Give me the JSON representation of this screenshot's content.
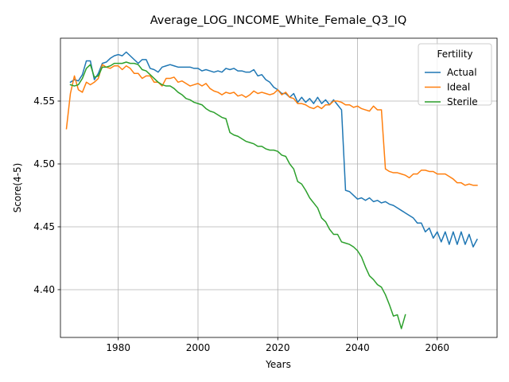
{
  "chart_data": {
    "type": "line",
    "title": "Average_LOG_INCOME_White_Female_Q3_IQ",
    "xlabel": "Years",
    "ylabel": "Score(4-5)",
    "xlim": [
      1965.5,
      2075
    ],
    "ylim": [
      4.362,
      4.6
    ],
    "xticks": [
      1980,
      2000,
      2020,
      2040,
      2060
    ],
    "yticks": [
      4.4,
      4.45,
      4.5,
      4.55
    ],
    "xtick_labels": [
      "1980",
      "2000",
      "2020",
      "2040",
      "2060"
    ],
    "ytick_labels": [
      "4.40",
      "4.45",
      "4.50",
      "4.55"
    ],
    "grid": true,
    "legend": {
      "title": "Fertility",
      "placement": "top-right"
    },
    "series": [
      {
        "name": "Actual",
        "color": "#1f77b4",
        "x": [
          1968,
          1969,
          1970,
          1971,
          1972,
          1973,
          1974,
          1975,
          1976,
          1977,
          1978,
          1979,
          1980,
          1981,
          1982,
          1983,
          1984,
          1985,
          1986,
          1987,
          1988,
          1989,
          1990,
          1991,
          1992,
          1993,
          1994,
          1995,
          1996,
          1997,
          1998,
          1999,
          2000,
          2001,
          2002,
          2003,
          2004,
          2005,
          2006,
          2007,
          2008,
          2009,
          2010,
          2011,
          2012,
          2013,
          2014,
          2015,
          2016,
          2017,
          2018,
          2019,
          2020,
          2021,
          2022,
          2023,
          2024,
          2025,
          2026,
          2027,
          2028,
          2029,
          2030,
          2031,
          2032,
          2033,
          2034,
          2035,
          2036,
          2037,
          2038,
          2039,
          2040,
          2041,
          2042,
          2043,
          2044,
          2045,
          2046,
          2047,
          2048,
          2049,
          2050,
          2051,
          2052,
          2053,
          2054,
          2055,
          2056,
          2057,
          2058,
          2059,
          2060,
          2061,
          2062,
          2063,
          2064,
          2065,
          2066,
          2067,
          2068,
          2069,
          2070
        ],
        "y": [
          4.565,
          4.567,
          4.566,
          4.571,
          4.582,
          4.582,
          4.567,
          4.572,
          4.58,
          4.581,
          4.584,
          4.586,
          4.587,
          4.586,
          4.589,
          4.586,
          4.583,
          4.58,
          4.583,
          4.583,
          4.576,
          4.575,
          4.573,
          4.577,
          4.578,
          4.579,
          4.578,
          4.577,
          4.577,
          4.577,
          4.577,
          4.576,
          4.576,
          4.574,
          4.575,
          4.574,
          4.573,
          4.574,
          4.573,
          4.576,
          4.575,
          4.576,
          4.574,
          4.574,
          4.573,
          4.573,
          4.575,
          4.57,
          4.571,
          4.567,
          4.565,
          4.561,
          4.559,
          4.556,
          4.556,
          4.553,
          4.556,
          4.549,
          4.553,
          4.549,
          4.552,
          4.548,
          4.553,
          4.548,
          4.551,
          4.547,
          4.551,
          4.547,
          4.543,
          4.479,
          4.478,
          4.475,
          4.472,
          4.473,
          4.471,
          4.473,
          4.47,
          4.471,
          4.469,
          4.47,
          4.468,
          4.467,
          4.465,
          4.463,
          4.461,
          4.459,
          4.457,
          4.453,
          4.453,
          4.446,
          4.449,
          4.441,
          4.446,
          4.438,
          4.446,
          4.436,
          4.446,
          4.436,
          4.446,
          4.436,
          4.444,
          4.434,
          4.44
        ]
      },
      {
        "name": "Ideal",
        "color": "#ff7f0e",
        "x": [
          1967,
          1968,
          1969,
          1970,
          1971,
          1972,
          1973,
          1974,
          1975,
          1976,
          1977,
          1978,
          1979,
          1980,
          1981,
          1982,
          1983,
          1984,
          1985,
          1986,
          1987,
          1988,
          1989,
          1990,
          1991,
          1992,
          1993,
          1994,
          1995,
          1996,
          1997,
          1998,
          1999,
          2000,
          2001,
          2002,
          2003,
          2004,
          2005,
          2006,
          2007,
          2008,
          2009,
          2010,
          2011,
          2012,
          2013,
          2014,
          2015,
          2016,
          2017,
          2018,
          2019,
          2020,
          2021,
          2022,
          2023,
          2024,
          2025,
          2026,
          2027,
          2028,
          2029,
          2030,
          2031,
          2032,
          2033,
          2034,
          2035,
          2036,
          2037,
          2038,
          2039,
          2040,
          2041,
          2042,
          2043,
          2044,
          2045,
          2046,
          2047,
          2048,
          2049,
          2050,
          2051,
          2052,
          2053,
          2054,
          2055,
          2056,
          2057,
          2058,
          2059,
          2060,
          2061,
          2062,
          2063,
          2064,
          2065,
          2066,
          2067,
          2068,
          2069,
          2070
        ],
        "y": [
          4.528,
          4.556,
          4.57,
          4.559,
          4.557,
          4.565,
          4.563,
          4.565,
          4.568,
          4.579,
          4.577,
          4.576,
          4.578,
          4.578,
          4.575,
          4.578,
          4.576,
          4.572,
          4.572,
          4.568,
          4.57,
          4.57,
          4.565,
          4.565,
          4.562,
          4.568,
          4.568,
          4.569,
          4.565,
          4.566,
          4.564,
          4.562,
          4.563,
          4.564,
          4.562,
          4.564,
          4.56,
          4.558,
          4.557,
          4.555,
          4.557,
          4.556,
          4.557,
          4.554,
          4.555,
          4.553,
          4.555,
          4.558,
          4.556,
          4.557,
          4.556,
          4.555,
          4.556,
          4.559,
          4.555,
          4.557,
          4.553,
          4.552,
          4.548,
          4.548,
          4.547,
          4.545,
          4.544,
          4.546,
          4.544,
          4.547,
          4.547,
          4.55,
          4.55,
          4.549,
          4.547,
          4.547,
          4.545,
          4.546,
          4.544,
          4.543,
          4.542,
          4.546,
          4.543,
          4.543,
          4.496,
          4.494,
          4.493,
          4.493,
          4.492,
          4.491,
          4.489,
          4.492,
          4.492,
          4.495,
          4.495,
          4.494,
          4.494,
          4.492,
          4.492,
          4.492,
          4.49,
          4.488,
          4.485,
          4.485,
          4.483,
          4.484,
          4.483,
          4.483
        ]
      },
      {
        "name": "Sterile",
        "color": "#2ca02c",
        "x": [
          1968,
          1969,
          1970,
          1971,
          1972,
          1973,
          1974,
          1975,
          1976,
          1977,
          1978,
          1979,
          1980,
          1981,
          1982,
          1983,
          1984,
          1985,
          1986,
          1987,
          1988,
          1989,
          1990,
          1991,
          1992,
          1993,
          1994,
          1995,
          1996,
          1997,
          1998,
          1999,
          2000,
          2001,
          2002,
          2003,
          2004,
          2005,
          2006,
          2007,
          2008,
          2009,
          2010,
          2011,
          2012,
          2013,
          2014,
          2015,
          2016,
          2017,
          2018,
          2019,
          2020,
          2021,
          2022,
          2023,
          2024,
          2025,
          2026,
          2027,
          2028,
          2029,
          2030,
          2031,
          2032,
          2033,
          2034,
          2035,
          2036,
          2037,
          2038,
          2039,
          2040,
          2041,
          2042,
          2043,
          2044,
          2045,
          2046,
          2047,
          2048,
          2049,
          2050,
          2051,
          2052
        ],
        "y": [
          4.563,
          4.562,
          4.563,
          4.568,
          4.576,
          4.579,
          4.569,
          4.57,
          4.577,
          4.577,
          4.578,
          4.58,
          4.58,
          4.58,
          4.581,
          4.58,
          4.58,
          4.579,
          4.575,
          4.574,
          4.571,
          4.568,
          4.565,
          4.563,
          4.562,
          4.562,
          4.56,
          4.557,
          4.555,
          4.552,
          4.551,
          4.549,
          4.548,
          4.547,
          4.544,
          4.542,
          4.541,
          4.539,
          4.537,
          4.536,
          4.525,
          4.523,
          4.522,
          4.52,
          4.518,
          4.517,
          4.516,
          4.514,
          4.514,
          4.512,
          4.511,
          4.511,
          4.51,
          4.507,
          4.506,
          4.5,
          4.496,
          4.486,
          4.484,
          4.479,
          4.473,
          4.469,
          4.465,
          4.457,
          4.454,
          4.448,
          4.444,
          4.444,
          4.438,
          4.437,
          4.436,
          4.434,
          4.431,
          4.426,
          4.418,
          4.411,
          4.408,
          4.404,
          4.402,
          4.396,
          4.388,
          4.379,
          4.38,
          4.369,
          4.38
        ]
      }
    ]
  }
}
